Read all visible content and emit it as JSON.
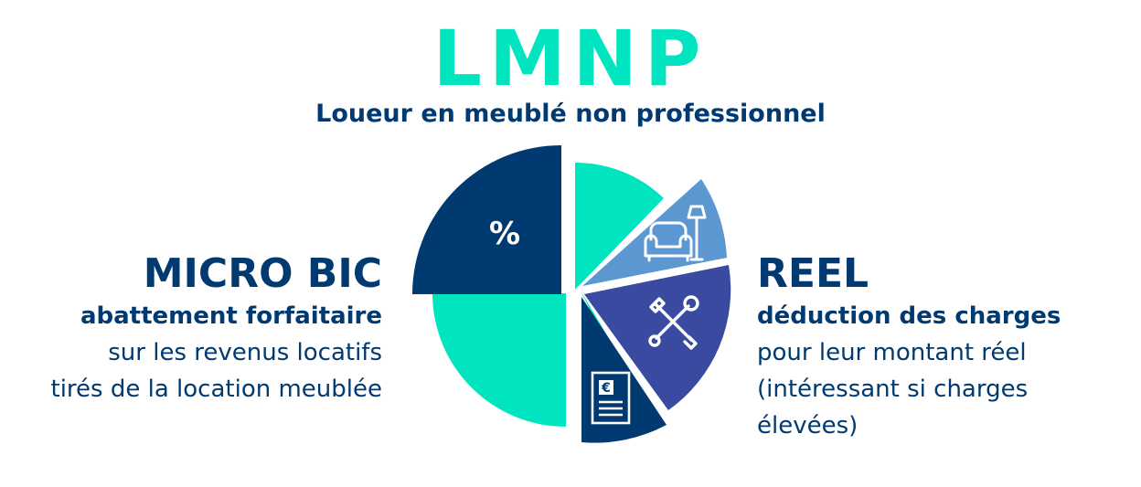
{
  "title": "LMNP",
  "subtitle": "Loueur en meublé non professionnel",
  "colors": {
    "teal": "#00e5c0",
    "navy": "#003a70",
    "light_blue": "#5b97d0",
    "indigo": "#3a4aa0",
    "text_navy": "#003a70"
  },
  "micro_bic": {
    "heading": "MICRO BIC",
    "emphasis": "abattement forfaitaire",
    "lines": [
      "sur les revenus locatifs",
      "tirés de la location meublée"
    ],
    "icon": "percent-icon",
    "icon_label": "%"
  },
  "reel": {
    "heading": "REEL",
    "emphasis": "déduction des charges",
    "lines": [
      "pour leur montant réel",
      "(intéressant si charges",
      "élevées)"
    ],
    "icons": [
      "armchair-lamp-icon",
      "tools-icon",
      "euro-document-icon"
    ],
    "euro_label": "€"
  }
}
